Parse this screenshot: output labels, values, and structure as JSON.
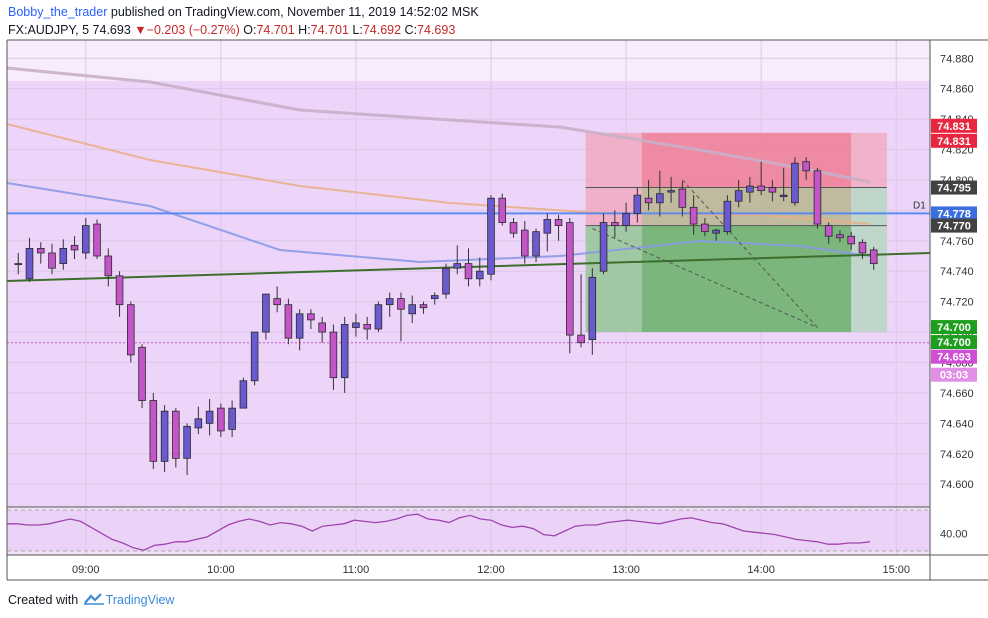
{
  "header": {
    "username": "Bobby_the_trader",
    "published_text": "published on TradingView.com, November 11, 2019 14:52:02 MSK",
    "symbol": "FX:AUDJPY, 5",
    "last": "74.693",
    "change": "−0.203 (−0.27%)",
    "o_label": "O:",
    "o": "74.701",
    "h_label": "H:",
    "h": "74.701",
    "l_label": "L:",
    "l": "74.692",
    "c_label": "C:",
    "c": "74.693"
  },
  "footer": {
    "created_with": "Created with",
    "brand": "TradingView"
  },
  "colors": {
    "background": "#ecd5f9",
    "bull": "#6a5acd",
    "bear": "#c455c9",
    "stop_zone": "#f3a3b8",
    "target_zone": "#8fc48f",
    "support_line": "#3d6e2e",
    "resistance_line": "#5b8bf0",
    "ma_fast": "#8a99e6",
    "ma_mid": "#e8b089",
    "ma_slow": "#c9aec6",
    "rsi": "#a044b0"
  },
  "chart_data": {
    "type": "candlestick",
    "title": "",
    "y_range": [
      74.585,
      74.892
    ],
    "y_ticks": [
      "74.880",
      "74.860",
      "74.840",
      "74.820",
      "74.800",
      "74.780",
      "74.760",
      "74.740",
      "74.720",
      "74.700",
      "74.680",
      "74.660",
      "74.640",
      "74.620",
      "74.600"
    ],
    "x_range": [
      "08:25",
      "15:15"
    ],
    "x_ticks": [
      "09:00",
      "10:00",
      "11:00",
      "12:00",
      "13:00",
      "14:00",
      "15:00"
    ],
    "grid": true,
    "candles": [
      {
        "t": "08:30",
        "o": 74.745,
        "h": 74.752,
        "l": 74.738,
        "c": 74.745
      },
      {
        "t": "08:35",
        "o": 74.735,
        "h": 74.762,
        "l": 74.733,
        "c": 74.755
      },
      {
        "t": "08:40",
        "o": 74.755,
        "h": 74.759,
        "l": 74.745,
        "c": 74.752
      },
      {
        "t": "08:45",
        "o": 74.752,
        "h": 74.758,
        "l": 74.738,
        "c": 74.742
      },
      {
        "t": "08:50",
        "o": 74.745,
        "h": 74.761,
        "l": 74.741,
        "c": 74.755
      },
      {
        "t": "08:55",
        "o": 74.757,
        "h": 74.763,
        "l": 74.748,
        "c": 74.754
      },
      {
        "t": "09:00",
        "o": 74.752,
        "h": 74.775,
        "l": 74.748,
        "c": 74.77
      },
      {
        "t": "09:05",
        "o": 74.771,
        "h": 74.774,
        "l": 74.748,
        "c": 74.75
      },
      {
        "t": "09:10",
        "o": 74.75,
        "h": 74.755,
        "l": 74.73,
        "c": 74.737
      },
      {
        "t": "09:15",
        "o": 74.737,
        "h": 74.74,
        "l": 74.71,
        "c": 74.718
      },
      {
        "t": "09:20",
        "o": 74.718,
        "h": 74.72,
        "l": 74.68,
        "c": 74.685
      },
      {
        "t": "09:25",
        "o": 74.69,
        "h": 74.692,
        "l": 74.65,
        "c": 74.655
      },
      {
        "t": "09:30",
        "o": 74.655,
        "h": 74.66,
        "l": 74.61,
        "c": 74.615
      },
      {
        "t": "09:35",
        "o": 74.615,
        "h": 74.652,
        "l": 74.608,
        "c": 74.648
      },
      {
        "t": "09:40",
        "o": 74.648,
        "h": 74.65,
        "l": 74.611,
        "c": 74.617
      },
      {
        "t": "09:45",
        "o": 74.617,
        "h": 74.64,
        "l": 74.606,
        "c": 74.638
      },
      {
        "t": "09:50",
        "o": 74.637,
        "h": 74.651,
        "l": 74.633,
        "c": 74.643
      },
      {
        "t": "09:55",
        "o": 74.64,
        "h": 74.656,
        "l": 74.632,
        "c": 74.648
      },
      {
        "t": "10:00",
        "o": 74.65,
        "h": 74.653,
        "l": 74.631,
        "c": 74.635
      },
      {
        "t": "10:05",
        "o": 74.636,
        "h": 74.655,
        "l": 74.631,
        "c": 74.65
      },
      {
        "t": "10:10",
        "o": 74.65,
        "h": 74.67,
        "l": 74.65,
        "c": 74.668
      },
      {
        "t": "10:15",
        "o": 74.668,
        "h": 74.7,
        "l": 74.665,
        "c": 74.7
      },
      {
        "t": "10:20",
        "o": 74.7,
        "h": 74.725,
        "l": 74.695,
        "c": 74.725
      },
      {
        "t": "10:25",
        "o": 74.722,
        "h": 74.73,
        "l": 74.713,
        "c": 74.718
      },
      {
        "t": "10:30",
        "o": 74.718,
        "h": 74.722,
        "l": 74.692,
        "c": 74.696
      },
      {
        "t": "10:35",
        "o": 74.696,
        "h": 74.715,
        "l": 74.688,
        "c": 74.712
      },
      {
        "t": "10:40",
        "o": 74.712,
        "h": 74.715,
        "l": 74.702,
        "c": 74.708
      },
      {
        "t": "10:45",
        "o": 74.706,
        "h": 74.71,
        "l": 74.693,
        "c": 74.7
      },
      {
        "t": "10:50",
        "o": 74.7,
        "h": 74.705,
        "l": 74.662,
        "c": 74.67
      },
      {
        "t": "10:55",
        "o": 74.67,
        "h": 74.71,
        "l": 74.66,
        "c": 74.705
      },
      {
        "t": "11:00",
        "o": 74.703,
        "h": 74.712,
        "l": 74.697,
        "c": 74.706
      },
      {
        "t": "11:05",
        "o": 74.705,
        "h": 74.71,
        "l": 74.695,
        "c": 74.702
      },
      {
        "t": "11:10",
        "o": 74.702,
        "h": 74.72,
        "l": 74.7,
        "c": 74.718
      },
      {
        "t": "11:15",
        "o": 74.718,
        "h": 74.726,
        "l": 74.71,
        "c": 74.722
      },
      {
        "t": "11:20",
        "o": 74.722,
        "h": 74.726,
        "l": 74.694,
        "c": 74.715
      },
      {
        "t": "11:25",
        "o": 74.712,
        "h": 74.724,
        "l": 74.706,
        "c": 74.718
      },
      {
        "t": "11:30",
        "o": 74.718,
        "h": 74.72,
        "l": 74.712,
        "c": 74.716
      },
      {
        "t": "11:35",
        "o": 74.722,
        "h": 74.726,
        "l": 74.718,
        "c": 74.724
      },
      {
        "t": "11:40",
        "o": 74.725,
        "h": 74.745,
        "l": 74.722,
        "c": 74.742
      },
      {
        "t": "11:45",
        "o": 74.742,
        "h": 74.757,
        "l": 74.738,
        "c": 74.745
      },
      {
        "t": "11:50",
        "o": 74.745,
        "h": 74.755,
        "l": 74.73,
        "c": 74.735
      },
      {
        "t": "11:55",
        "o": 74.735,
        "h": 74.749,
        "l": 74.73,
        "c": 74.74
      },
      {
        "t": "12:00",
        "o": 74.738,
        "h": 74.79,
        "l": 74.734,
        "c": 74.788
      },
      {
        "t": "12:05",
        "o": 74.788,
        "h": 74.791,
        "l": 74.77,
        "c": 74.772
      },
      {
        "t": "12:10",
        "o": 74.772,
        "h": 74.775,
        "l": 74.762,
        "c": 74.765
      },
      {
        "t": "12:15",
        "o": 74.767,
        "h": 74.773,
        "l": 74.745,
        "c": 74.75
      },
      {
        "t": "12:20",
        "o": 74.75,
        "h": 74.768,
        "l": 74.746,
        "c": 74.766
      },
      {
        "t": "12:25",
        "o": 74.765,
        "h": 74.778,
        "l": 74.753,
        "c": 74.774
      },
      {
        "t": "12:30",
        "o": 74.774,
        "h": 74.777,
        "l": 74.76,
        "c": 74.77
      },
      {
        "t": "12:35",
        "o": 74.772,
        "h": 74.775,
        "l": 74.686,
        "c": 74.698
      },
      {
        "t": "12:40",
        "o": 74.698,
        "h": 74.738,
        "l": 74.69,
        "c": 74.693
      },
      {
        "t": "12:45",
        "o": 74.695,
        "h": 74.742,
        "l": 74.685,
        "c": 74.736
      },
      {
        "t": "12:50",
        "o": 74.74,
        "h": 74.778,
        "l": 74.738,
        "c": 74.772
      },
      {
        "t": "12:55",
        "o": 74.772,
        "h": 74.78,
        "l": 74.762,
        "c": 74.77
      },
      {
        "t": "13:00",
        "o": 74.77,
        "h": 74.785,
        "l": 74.766,
        "c": 74.778
      },
      {
        "t": "13:05",
        "o": 74.778,
        "h": 74.795,
        "l": 74.772,
        "c": 74.79
      },
      {
        "t": "13:10",
        "o": 74.788,
        "h": 74.8,
        "l": 74.78,
        "c": 74.785
      },
      {
        "t": "13:15",
        "o": 74.785,
        "h": 74.806,
        "l": 74.776,
        "c": 74.791
      },
      {
        "t": "13:20",
        "o": 74.792,
        "h": 74.802,
        "l": 74.785,
        "c": 74.793
      },
      {
        "t": "13:25",
        "o": 74.794,
        "h": 74.799,
        "l": 74.776,
        "c": 74.782
      },
      {
        "t": "13:30",
        "o": 74.782,
        "h": 74.79,
        "l": 74.764,
        "c": 74.771
      },
      {
        "t": "13:35",
        "o": 74.771,
        "h": 74.775,
        "l": 74.763,
        "c": 74.766
      },
      {
        "t": "13:40",
        "o": 74.765,
        "h": 74.768,
        "l": 74.76,
        "c": 74.767
      },
      {
        "t": "13:45",
        "o": 74.766,
        "h": 74.79,
        "l": 74.764,
        "c": 74.786
      },
      {
        "t": "13:50",
        "o": 74.786,
        "h": 74.8,
        "l": 74.782,
        "c": 74.793
      },
      {
        "t": "13:55",
        "o": 74.792,
        "h": 74.802,
        "l": 74.785,
        "c": 74.796
      },
      {
        "t": "14:00",
        "o": 74.796,
        "h": 74.812,
        "l": 74.79,
        "c": 74.793
      },
      {
        "t": "14:05",
        "o": 74.795,
        "h": 74.8,
        "l": 74.786,
        "c": 74.792
      },
      {
        "t": "14:10",
        "o": 74.789,
        "h": 74.808,
        "l": 74.786,
        "c": 74.79
      },
      {
        "t": "14:15",
        "o": 74.785,
        "h": 74.815,
        "l": 74.783,
        "c": 74.811
      },
      {
        "t": "14:20",
        "o": 74.812,
        "h": 74.815,
        "l": 74.8,
        "c": 74.806
      },
      {
        "t": "14:25",
        "o": 74.806,
        "h": 74.808,
        "l": 74.768,
        "c": 74.771
      },
      {
        "t": "14:30",
        "o": 74.77,
        "h": 74.772,
        "l": 74.758,
        "c": 74.763
      },
      {
        "t": "14:35",
        "o": 74.764,
        "h": 74.767,
        "l": 74.759,
        "c": 74.762
      },
      {
        "t": "14:40",
        "o": 74.763,
        "h": 74.766,
        "l": 74.754,
        "c": 74.758
      },
      {
        "t": "14:45",
        "o": 74.759,
        "h": 74.761,
        "l": 74.748,
        "c": 74.752
      },
      {
        "t": "14:50",
        "o": 74.754,
        "h": 74.756,
        "l": 74.741,
        "c": 74.745
      }
    ],
    "levels": [
      {
        "price": 74.831,
        "label": "74.831",
        "color": "#e8263f"
      },
      {
        "price": 74.795,
        "label": "74.795",
        "color": "#424242"
      },
      {
        "price": 74.778,
        "label": "74.778",
        "color": "#3b6fe0",
        "line_label": "D1"
      },
      {
        "price": 74.77,
        "label": "74.770",
        "color": "#424242"
      },
      {
        "price": 74.7,
        "label": "74.700",
        "color": "#1e9e1e"
      },
      {
        "price": 74.693,
        "label": "74.693",
        "color": "#d04ed6"
      }
    ],
    "countdown": "03:03",
    "rsi": {
      "tick_label": "40.00",
      "values": [
        48,
        48,
        47,
        47,
        48,
        50,
        52,
        50,
        45,
        40,
        35,
        32,
        28,
        26,
        30,
        31,
        33,
        33,
        35,
        37,
        42,
        47,
        50,
        52,
        50,
        47,
        49,
        48,
        46,
        42,
        46,
        47,
        48,
        51,
        50,
        49,
        50,
        52,
        55,
        56,
        52,
        51,
        49,
        53,
        55,
        52,
        51,
        47,
        45,
        46,
        44,
        39,
        38,
        42,
        46,
        47,
        47,
        49,
        50,
        51,
        50,
        49,
        48,
        50,
        52,
        53,
        51,
        49,
        48,
        45,
        42,
        41,
        40,
        39,
        37,
        35,
        34,
        33,
        31,
        31,
        32,
        32,
        33
      ]
    },
    "trade_zones": {
      "entry": 74.77,
      "stop": 74.831,
      "target": 74.7
    }
  }
}
